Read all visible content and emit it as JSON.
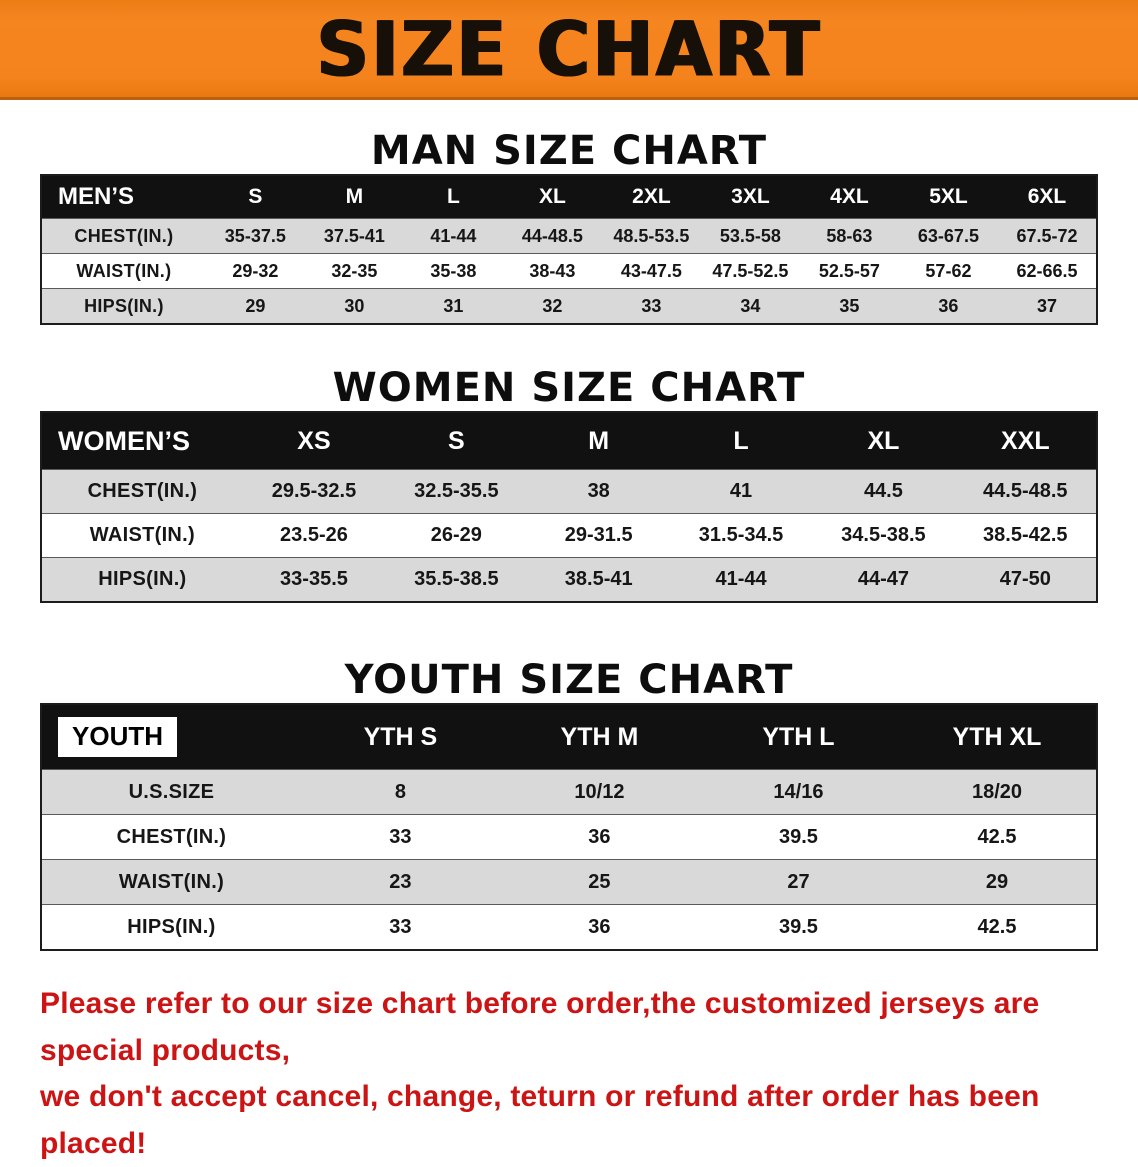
{
  "banner": {
    "title": "SIZE CHART",
    "bg_color": "#F5831D",
    "text_color": "#171008"
  },
  "sections": [
    {
      "heading": "MAN SIZE CHART",
      "table": {
        "header": [
          "MEN’S",
          "S",
          "M",
          "L",
          "XL",
          "2XL",
          "3XL",
          "4XL",
          "5XL",
          "6XL"
        ],
        "rows": [
          {
            "label": "CHEST(IN.)",
            "values": [
              "35-37.5",
              "37.5-41",
              "41-44",
              "44-48.5",
              "48.5-53.5",
              "53.5-58",
              "58-63",
              "63-67.5",
              "67.5-72"
            ]
          },
          {
            "label": "WAIST(IN.)",
            "values": [
              "29-32",
              "32-35",
              "35-38",
              "38-43",
              "43-47.5",
              "47.5-52.5",
              "52.5-57",
              "57-62",
              "62-66.5"
            ]
          },
          {
            "label": "HIPS(IN.)",
            "values": [
              "29",
              "30",
              "31",
              "32",
              "33",
              "34",
              "35",
              "36",
              "37"
            ]
          }
        ]
      }
    },
    {
      "heading": "WOMEN SIZE CHART",
      "table": {
        "header": [
          "WOMEN’S",
          "XS",
          "S",
          "M",
          "L",
          "XL",
          "XXL"
        ],
        "rows": [
          {
            "label": "CHEST(IN.)",
            "values": [
              "29.5-32.5",
              "32.5-35.5",
              "38",
              "41",
              "44.5",
              "44.5-48.5"
            ]
          },
          {
            "label": "WAIST(IN.)",
            "values": [
              "23.5-26",
              "26-29",
              "29-31.5",
              "31.5-34.5",
              "34.5-38.5",
              "38.5-42.5"
            ]
          },
          {
            "label": "HIPS(IN.)",
            "values": [
              "33-35.5",
              "35.5-38.5",
              "38.5-41",
              "41-44",
              "44-47",
              "47-50"
            ]
          }
        ]
      }
    },
    {
      "heading": "YOUTH SIZE CHART",
      "table": {
        "header": [
          "YOUTH",
          "YTH S",
          "YTH M",
          "YTH L",
          "YTH XL"
        ],
        "rows": [
          {
            "label": "U.S.SIZE",
            "values": [
              "8",
              "10/12",
              "14/16",
              "18/20"
            ]
          },
          {
            "label": "CHEST(IN.)",
            "values": [
              "33",
              "36",
              "39.5",
              "42.5"
            ]
          },
          {
            "label": "WAIST(IN.)",
            "values": [
              "23",
              "25",
              "27",
              "29"
            ]
          },
          {
            "label": "HIPS(IN.)",
            "values": [
              "33",
              "36",
              "39.5",
              "42.5"
            ]
          }
        ]
      }
    }
  ],
  "disclaimer": {
    "lines": [
      "Please refer to our size chart before order,the customized jerseys are special products,",
      "we don't accept cancel, change, teturn or refund after order has been placed!"
    ],
    "color": "#cd1414"
  }
}
